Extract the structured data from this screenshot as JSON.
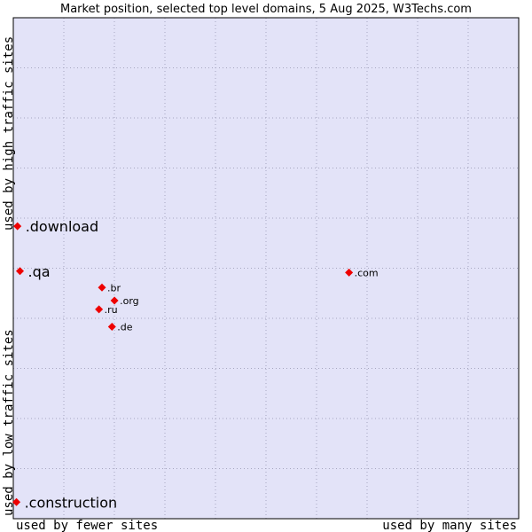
{
  "chart_data": {
    "type": "scatter",
    "title": "Market position, selected top level domains, 5 Aug 2025, W3Techs.com",
    "x_axis": {
      "low_label": "used by fewer sites",
      "high_label": "used by many sites"
    },
    "y_axis": {
      "low_label": "used by low traffic sites",
      "high_label": "used by high traffic sites"
    },
    "xlim": [
      0,
      100
    ],
    "ylim": [
      0,
      100
    ],
    "grid": true,
    "points": [
      {
        "label": ".download",
        "x": 0.3,
        "y": 57.6,
        "emphasis": true
      },
      {
        "label": ".qa",
        "x": 0.8,
        "y": 48.3,
        "emphasis": true
      },
      {
        "label": ".construction",
        "x": 0.1,
        "y": 0.5,
        "emphasis": true
      },
      {
        "label": ".com",
        "x": 66.6,
        "y": 48.0,
        "emphasis": false
      },
      {
        "label": ".br",
        "x": 17.2,
        "y": 44.9,
        "emphasis": false
      },
      {
        "label": ".org",
        "x": 19.7,
        "y": 42.2,
        "emphasis": false
      },
      {
        "label": ".ru",
        "x": 16.6,
        "y": 40.4,
        "emphasis": false
      },
      {
        "label": ".de",
        "x": 19.2,
        "y": 36.8,
        "emphasis": false
      }
    ]
  },
  "colors": {
    "plot_background": "#e3e3f8",
    "grid": "#a6a6bf",
    "marker": "#ee0000"
  }
}
